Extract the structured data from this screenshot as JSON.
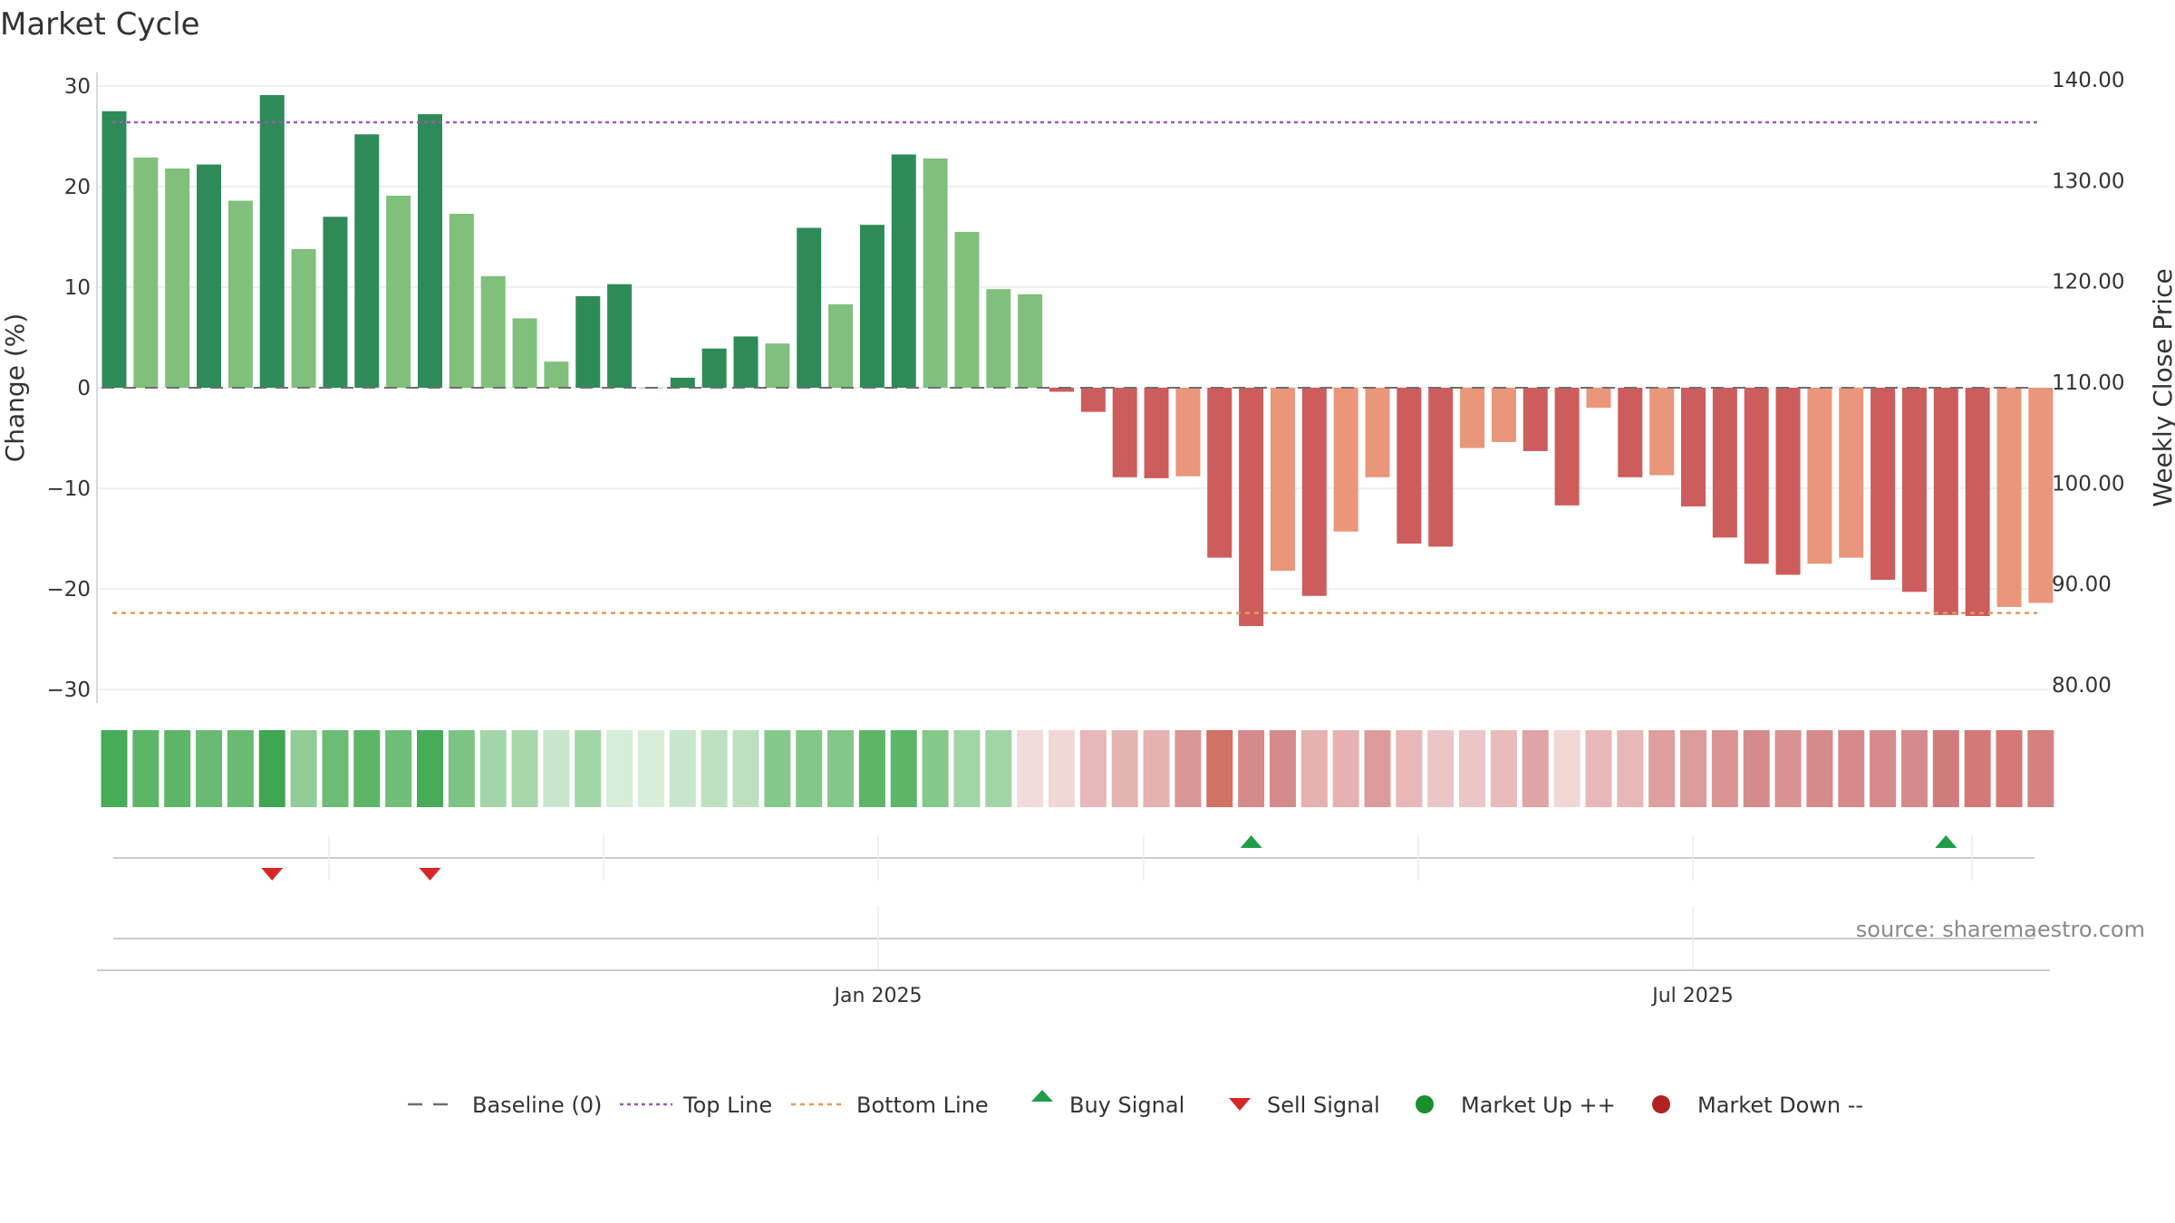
{
  "chart_data": {
    "type": "bar",
    "title": "Market Cycle",
    "ylabel_left": "Change (%)",
    "ylabel_right": "Weekly Close Price",
    "ylim_left": [
      -30,
      30
    ],
    "left_ticks": [
      30,
      20,
      10,
      0,
      -10,
      -20,
      -30
    ],
    "left_tick_labels": [
      "30",
      "20",
      "10",
      "0",
      "−10",
      "−20",
      "−30"
    ],
    "ylim_right": [
      80,
      140
    ],
    "right_tick_labels": [
      "140.00",
      "130.00",
      "120.00",
      "110.00",
      "100.00",
      "90.00",
      "80.00"
    ],
    "top_line": 26.4,
    "bottom_line": -22.4,
    "baseline": 0,
    "x_tick_labels": [
      {
        "label": "Jan 2025",
        "week": 24
      },
      {
        "label": "Jul 2025",
        "week": 50
      }
    ],
    "source": "source: sharemaestro.com",
    "values": [
      27.5,
      22.9,
      21.8,
      22.2,
      18.6,
      29.1,
      13.8,
      17.0,
      25.2,
      19.1,
      27.2,
      17.3,
      11.1,
      6.9,
      2.6,
      9.1,
      10.3,
      0,
      1.0,
      3.9,
      5.1,
      4.4,
      15.9,
      8.3,
      16.2,
      23.2,
      22.8,
      15.5,
      9.8,
      9.3,
      -0.4,
      -2.4,
      -8.9,
      -9.0,
      -8.8,
      -16.9,
      -23.7,
      -18.2,
      -20.7,
      -14.3,
      -8.9,
      -15.5,
      -15.8,
      -6.0,
      -5.4,
      -6.3,
      -11.7,
      -2.0,
      -8.9,
      -8.7,
      -11.8,
      -14.9,
      -17.5,
      -18.6,
      -17.5,
      -16.9,
      -19.1,
      -20.3,
      -22.6,
      -22.7,
      -21.8,
      -21.4
    ],
    "bar_shades": [
      "dark",
      "light",
      "light",
      "dark",
      "light",
      "dark",
      "light",
      "dark",
      "dark",
      "light",
      "dark",
      "light",
      "light",
      "light",
      "light",
      "dark",
      "dark",
      "light",
      "dark",
      "dark",
      "dark",
      "light",
      "dark",
      "light",
      "dark",
      "dark",
      "light",
      "light",
      "light",
      "light",
      "dark",
      "dark",
      "dark",
      "dark",
      "light",
      "dark",
      "dark",
      "light",
      "dark",
      "light",
      "light",
      "dark",
      "dark",
      "light",
      "light",
      "dark",
      "dark",
      "light",
      "dark",
      "light",
      "dark",
      "dark",
      "dark",
      "dark",
      "light",
      "light",
      "dark",
      "dark",
      "dark",
      "dark",
      "light",
      "light"
    ],
    "strip_colors": [
      "#46ac58",
      "#5db668",
      "#5db668",
      "#69bb73",
      "#69bb73",
      "#3fa652",
      "#91cc97",
      "#6cbc75",
      "#5db668",
      "#6fbe78",
      "#46ac58",
      "#7dc484",
      "#a3d5a8",
      "#a8d7ac",
      "#c8e6cb",
      "#a1d4a6",
      "#d6edd8",
      "#d8eed9",
      "#c8e6cb",
      "#bde1c0",
      "#bde1c0",
      "#85c88c",
      "#84c78a",
      "#84c78a",
      "#5db668",
      "#5db668",
      "#85c88c",
      "#a1d4a6",
      "#a1d4a6",
      "#f2dbdb",
      "#f2d7d7",
      "#e8b7b7",
      "#e6b3b3",
      "#e5b1b1",
      "#d99696",
      "#d07264",
      "#d68a8a",
      "#d58b8b",
      "#e5b1b1",
      "#e5b1b1",
      "#dc9b9b",
      "#e8b7b7",
      "#ebc6c6",
      "#ebc6c6",
      "#e8bbbb",
      "#dfa4a4",
      "#f2d7d7",
      "#e8b7b7",
      "#e8b7b7",
      "#df9f9f",
      "#dc9b9b",
      "#da9494",
      "#d58b8b",
      "#d99292",
      "#d68a8a",
      "#d68a8a",
      "#d58b8b",
      "#d58b8b",
      "#d07c7c",
      "#d47878",
      "#d47878",
      "#d58080"
    ],
    "buy_signals": [
      36,
      58
    ],
    "sell_signals": [
      5,
      10
    ]
  },
  "legend": [
    {
      "label": "Baseline (0)",
      "icon": "dash-gray"
    },
    {
      "label": "Top Line",
      "icon": "dot-purple"
    },
    {
      "label": "Bottom Line",
      "icon": "dot-orange"
    },
    {
      "label": "Buy Signal",
      "icon": "triangle-up-green"
    },
    {
      "label": "Sell Signal",
      "icon": "triangle-down-red"
    },
    {
      "label": "Market Up ++",
      "icon": "circle-green"
    },
    {
      "label": "Market Down --",
      "icon": "circle-red"
    }
  ],
  "colors": {
    "up_dark": "#2e8b57",
    "up_light": "#80c07c",
    "down_dark": "#cd5c5c",
    "down_light": "#e9967a",
    "top_line": "#9b59b6",
    "bottom_line": "#e69a5a",
    "baseline": "#6f6f6f",
    "buy": "#1e9e4a",
    "sell": "#d62728",
    "market_up": "#1a8f2c",
    "market_down": "#b22222"
  }
}
